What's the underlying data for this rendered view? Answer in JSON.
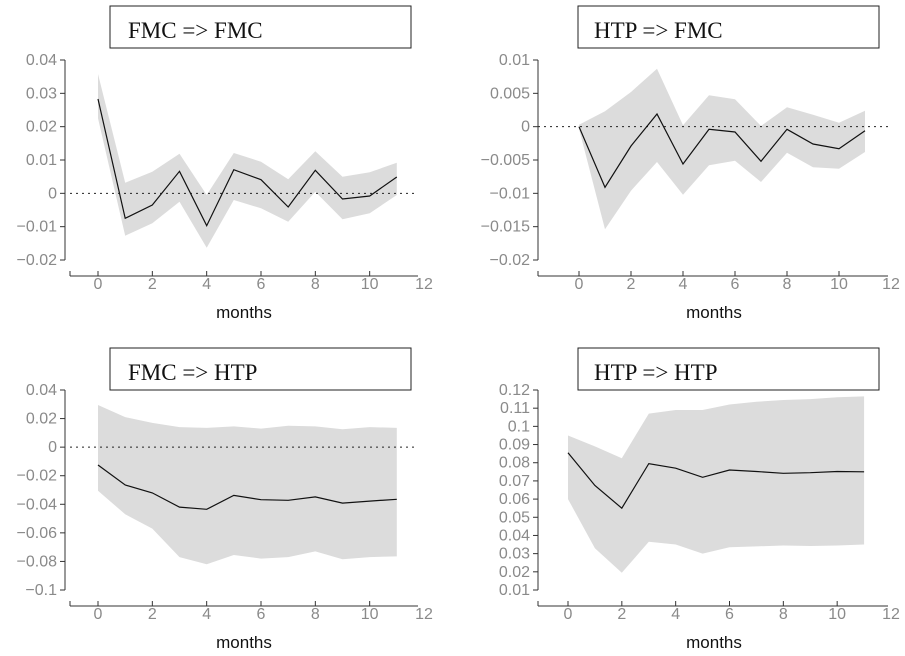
{
  "chart_data": [
    {
      "type": "line",
      "title": "FMC => FMC",
      "xlabel": "months",
      "ylabel": "",
      "xlim": [
        -1,
        12
      ],
      "ylim": [
        -0.02,
        0.04
      ],
      "xticks": [
        0,
        2,
        4,
        6,
        8,
        10,
        12
      ],
      "yticks": [
        -0.02,
        -0.01,
        0,
        0.01,
        0.02,
        0.03,
        0.04
      ],
      "ytick_labels": [
        "−0.02",
        "−0.01",
        "0",
        "0.01",
        "0.02",
        "0.03",
        "0.04"
      ],
      "zero_line": "dotted",
      "x": [
        0,
        1,
        2,
        3,
        4,
        5,
        6,
        7,
        8,
        9,
        10,
        11
      ],
      "series": [
        {
          "values": [
            0.0283,
            -0.0075,
            -0.0035,
            0.0066,
            -0.0097,
            0.0071,
            0.0041,
            -0.0041,
            0.0069,
            -0.0017,
            -0.0008,
            0.0049
          ]
        }
      ],
      "band_upper": [
        0.0358,
        0.0032,
        0.0065,
        0.0119,
        -0.0005,
        0.0121,
        0.0095,
        0.0042,
        0.0126,
        0.005,
        0.0063,
        0.0092
      ],
      "band_lower": [
        0.0225,
        -0.0127,
        -0.009,
        -0.0025,
        -0.0163,
        -0.002,
        -0.0045,
        -0.0085,
        0.0005,
        -0.0078,
        -0.006,
        -0.0005
      ]
    },
    {
      "type": "line",
      "title": "HTP => FMC",
      "xlabel": "months",
      "ylabel": "",
      "xlim": [
        -1,
        12
      ],
      "ylim": [
        -0.02,
        0.01
      ],
      "xticks": [
        0,
        2,
        4,
        6,
        8,
        10,
        12
      ],
      "yticks": [
        -0.02,
        -0.015,
        -0.01,
        -0.005,
        0,
        0.005,
        0.01
      ],
      "ytick_labels": [
        "−0.02",
        "−0.015",
        "−0.01",
        "−0.005",
        "0",
        "0.005",
        "0.01"
      ],
      "zero_line": "dotted",
      "x": [
        0,
        1,
        2,
        3,
        4,
        5,
        6,
        7,
        8,
        9,
        10,
        11
      ],
      "series": [
        {
          "values": [
            0.0,
            -0.0091,
            -0.0029,
            0.0019,
            -0.0056,
            -0.0004,
            -0.0008,
            -0.0052,
            -0.0004,
            -0.0026,
            -0.0033,
            -0.0006
          ]
        }
      ],
      "band_upper": [
        0.0003,
        0.0023,
        0.0052,
        0.0087,
        0.0002,
        0.0047,
        0.0041,
        0.0001,
        0.0029,
        0.0018,
        0.0006,
        0.0024
      ],
      "band_lower": [
        -0.0003,
        -0.0154,
        -0.0096,
        -0.0053,
        -0.0102,
        -0.0058,
        -0.0051,
        -0.0083,
        -0.0039,
        -0.0061,
        -0.0063,
        -0.0038
      ]
    },
    {
      "type": "line",
      "title": "FMC => HTP",
      "xlabel": "months",
      "ylabel": "",
      "xlim": [
        -1,
        12
      ],
      "ylim": [
        -0.1,
        0.04
      ],
      "xticks": [
        0,
        2,
        4,
        6,
        8,
        10,
        12
      ],
      "yticks": [
        -0.1,
        -0.08,
        -0.06,
        -0.04,
        -0.02,
        0,
        0.02,
        0.04
      ],
      "ytick_labels": [
        "−0.1",
        "−0.08",
        "−0.06",
        "−0.04",
        "−0.02",
        "0",
        "0.02",
        "0.04"
      ],
      "zero_line": "dotted",
      "x": [
        0,
        1,
        2,
        3,
        4,
        5,
        6,
        7,
        8,
        9,
        10,
        11
      ],
      "series": [
        {
          "values": [
            -0.0125,
            -0.0265,
            -0.032,
            -0.042,
            -0.0435,
            -0.0338,
            -0.0368,
            -0.0372,
            -0.0348,
            -0.0392,
            -0.0378,
            -0.0365
          ]
        }
      ],
      "band_upper": [
        0.0295,
        0.021,
        0.017,
        0.014,
        0.0135,
        0.0145,
        0.013,
        0.015,
        0.0145,
        0.0125,
        0.014,
        0.0135
      ],
      "band_lower": [
        -0.0305,
        -0.047,
        -0.057,
        -0.077,
        -0.082,
        -0.0755,
        -0.078,
        -0.077,
        -0.073,
        -0.0785,
        -0.077,
        -0.0765
      ]
    },
    {
      "type": "line",
      "title": "HTP => HTP",
      "xlabel": "months",
      "ylabel": "",
      "xlim": [
        -1,
        12
      ],
      "ylim": [
        0.01,
        0.12
      ],
      "xticks": [
        0,
        2,
        4,
        6,
        8,
        10,
        12
      ],
      "yticks": [
        0.01,
        0.02,
        0.03,
        0.04,
        0.05,
        0.06,
        0.07,
        0.08,
        0.09,
        0.1,
        0.11,
        0.12
      ],
      "ytick_labels": [
        "0.01",
        "0.02",
        "0.03",
        "0.04",
        "0.05",
        "0.06",
        "0.07",
        "0.08",
        "0.09",
        "0.1",
        "0.11",
        "0.12"
      ],
      "zero_line": "none",
      "x": [
        0,
        1,
        2,
        3,
        4,
        5,
        6,
        7,
        8,
        9,
        10,
        11
      ],
      "series": [
        {
          "values": [
            0.0855,
            0.0675,
            0.055,
            0.0795,
            0.077,
            0.072,
            0.076,
            0.0752,
            0.0742,
            0.0745,
            0.0752,
            0.075
          ]
        }
      ],
      "band_upper": [
        0.095,
        0.089,
        0.0825,
        0.107,
        0.109,
        0.109,
        0.112,
        0.1135,
        0.1145,
        0.115,
        0.116,
        0.1165
      ],
      "band_lower": [
        0.06,
        0.033,
        0.0195,
        0.0365,
        0.035,
        0.03,
        0.0335,
        0.034,
        0.0345,
        0.0342,
        0.0345,
        0.035
      ]
    }
  ]
}
